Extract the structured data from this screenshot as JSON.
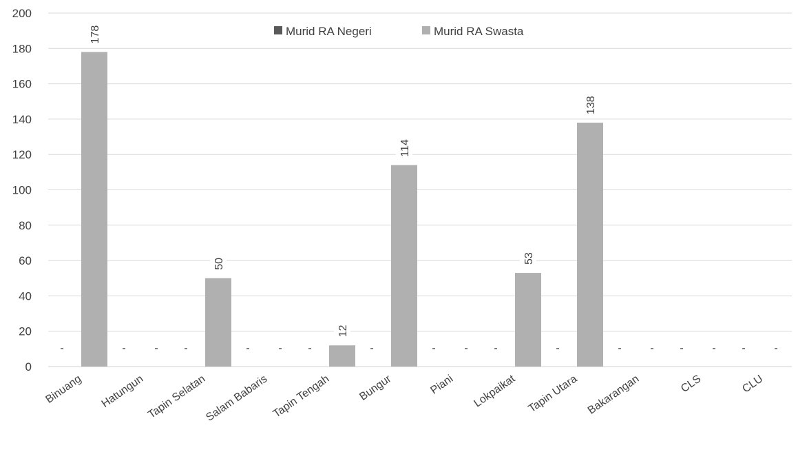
{
  "chart_data": {
    "type": "bar",
    "title": "",
    "xlabel": "",
    "ylabel": "",
    "ylim": [
      0,
      200
    ],
    "yticks": [
      0,
      20,
      40,
      60,
      80,
      100,
      120,
      140,
      160,
      180,
      200
    ],
    "grid": true,
    "legend_position": "top",
    "categories": [
      "Binuang",
      "Hatungun",
      "Tapin Selatan",
      "Salam Babaris",
      "Tapin Tengah",
      "Bungur",
      "Piani",
      "Lokpaikat",
      "Tapin Utara",
      "Bakarangan",
      "CLS",
      "CLU"
    ],
    "series": [
      {
        "name": "Murid RA Negeri",
        "color": "#595959",
        "values": [
          0,
          0,
          0,
          0,
          0,
          0,
          0,
          0,
          0,
          0,
          0,
          0
        ],
        "labels": [
          "-",
          "-",
          "-",
          "-",
          "-",
          "-",
          "-",
          "-",
          "-",
          "-",
          "-",
          "-"
        ]
      },
      {
        "name": "Murid RA Swasta",
        "color": "#b0b0b0",
        "values": [
          178,
          0,
          50,
          0,
          12,
          114,
          0,
          53,
          138,
          0,
          0,
          0
        ],
        "labels": [
          "178",
          "-",
          "50",
          "-",
          "12",
          "114",
          "-",
          "53",
          "138",
          "-",
          "-",
          "-"
        ]
      }
    ]
  }
}
